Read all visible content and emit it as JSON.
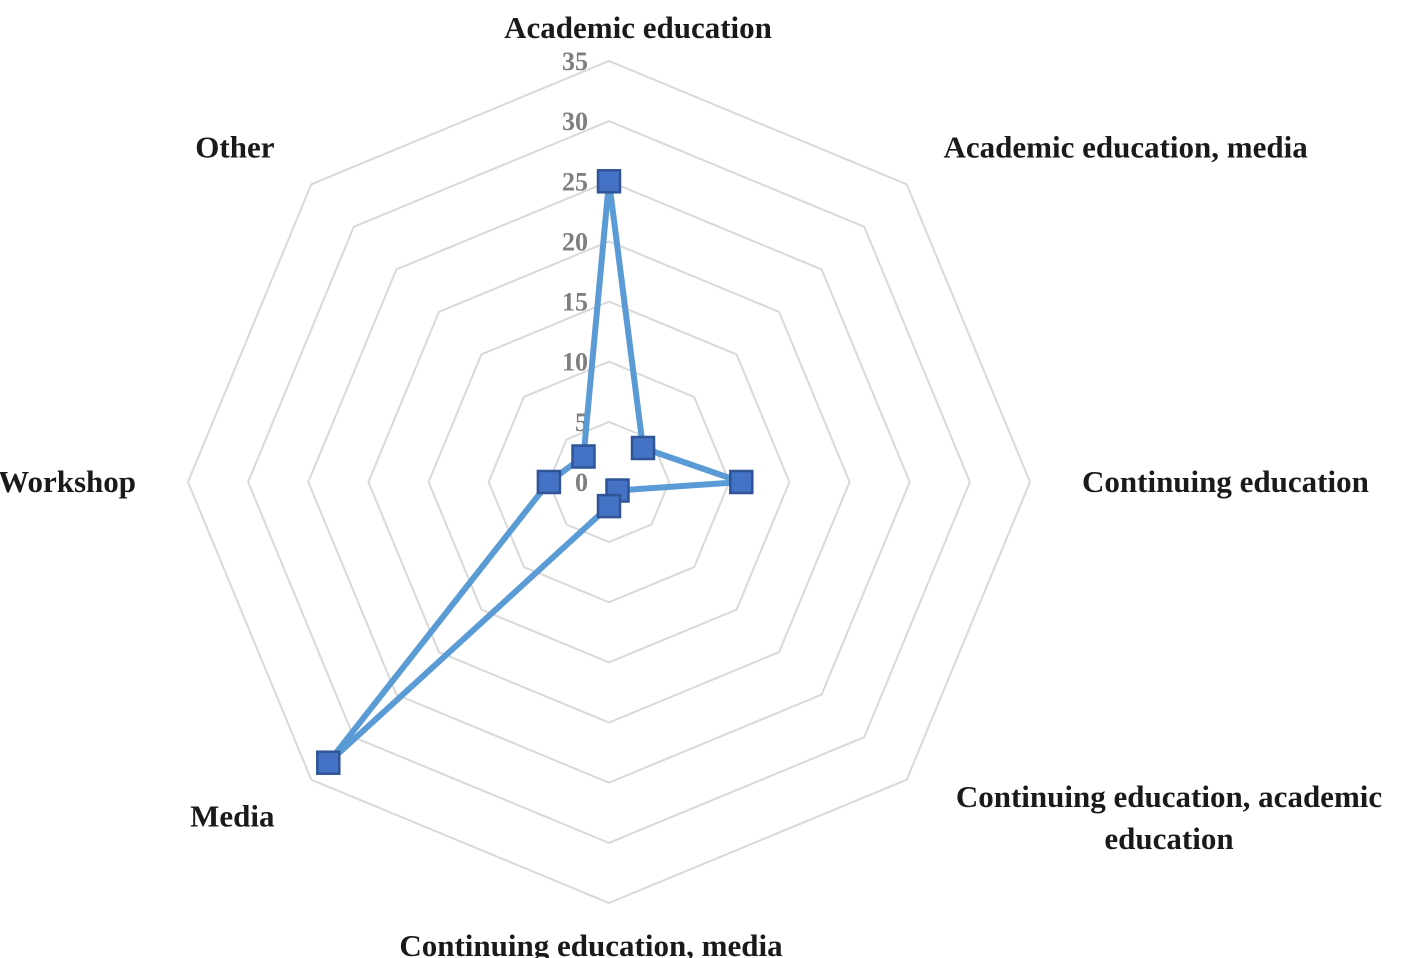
{
  "chart_data": {
    "type": "radar",
    "categories": [
      "Academic education",
      "Academic education, media",
      "Continuing education",
      "Continuing education, academic education",
      "Continuing education, media",
      "Media",
      "Workshop",
      "Other"
    ],
    "label_lines": [
      [
        "Academic education"
      ],
      [
        "Academic education, media"
      ],
      [
        "Continuing education"
      ],
      [
        "Continuing education, academic",
        "education"
      ],
      [
        "Continuing education, media"
      ],
      [
        "Media"
      ],
      [
        "Workshop"
      ],
      [
        "Other"
      ]
    ],
    "series": [
      {
        "values": [
          25,
          4,
          11,
          1,
          2,
          33,
          5,
          3
        ]
      }
    ],
    "rlim": [
      0,
      35
    ],
    "ticks": [
      0,
      5,
      10,
      15,
      20,
      25,
      30,
      35
    ],
    "grid": true,
    "legend": "none",
    "colors": {
      "series": "#5b9bd5",
      "marker_fill": "#4472c4",
      "marker_stroke": "#2f5597",
      "grid": "#d9d9d9"
    }
  }
}
